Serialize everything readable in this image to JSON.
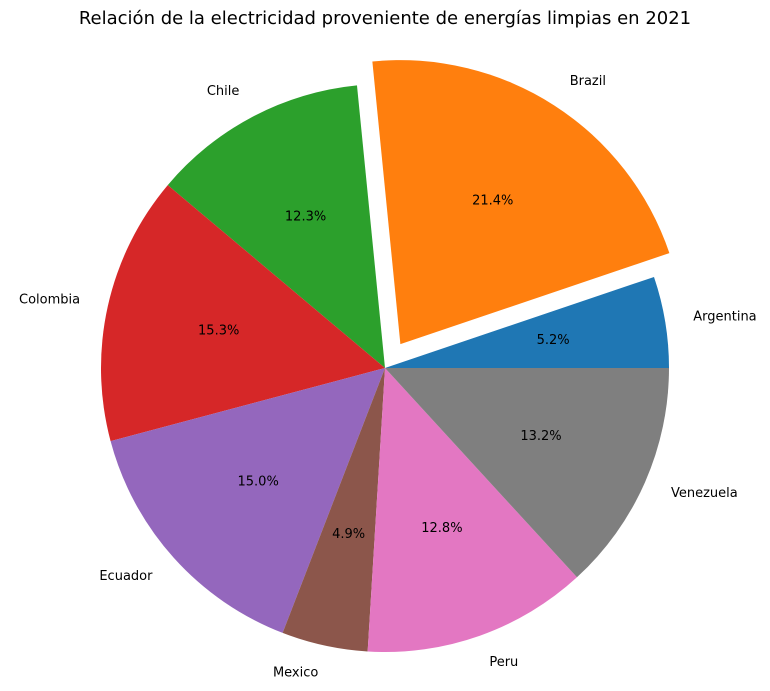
{
  "chart_data": {
    "type": "pie",
    "title": "Relación de la electricidad proveniente de energías limpias en 2021",
    "categories": [
      "Argentina",
      "Brazil",
      "Chile",
      "Colombia",
      "Ecuador",
      "Mexico",
      "Peru",
      "Venezuela"
    ],
    "values": [
      5.2,
      21.4,
      12.3,
      15.3,
      15.0,
      4.9,
      12.8,
      13.2
    ],
    "value_labels": [
      "5.2%",
      "21.4%",
      "12.3%",
      "15.3%",
      "15.0%",
      "4.9%",
      "12.8%",
      "13.2%"
    ],
    "exploded": [
      "Brazil"
    ],
    "start_angle_deg": 0,
    "direction": "counterclockwise",
    "colors": [
      "#1f77b4",
      "#ff7f0e",
      "#2ca02c",
      "#d62728",
      "#9467bd",
      "#8c564b",
      "#e377c2",
      "#7f7f7f"
    ]
  }
}
